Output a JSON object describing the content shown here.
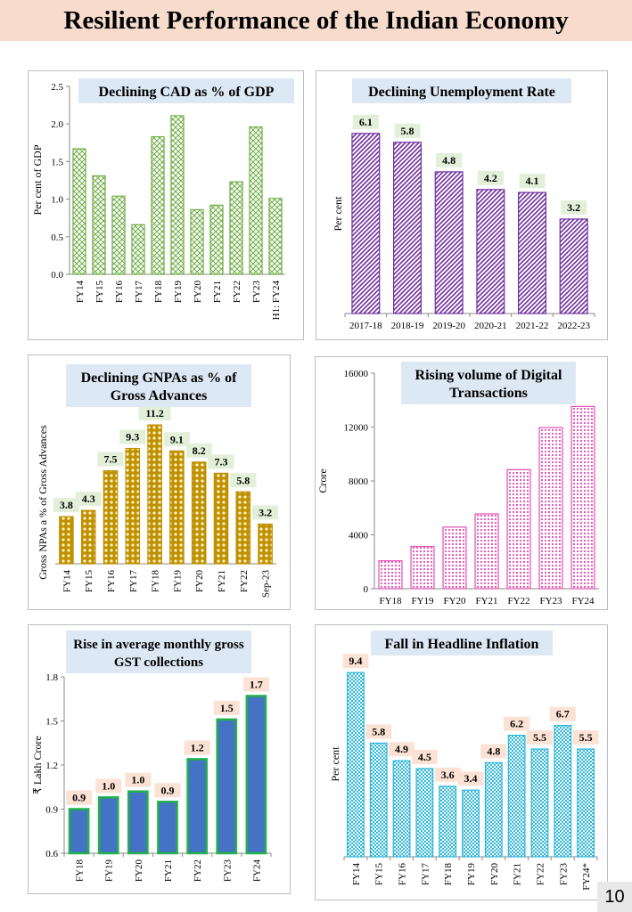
{
  "page": {
    "title": "Resilient Performance of the Indian Economy",
    "page_number": "10"
  },
  "colors": {
    "banner_bg": "#f7dccd",
    "title_box_bg": "#dde8f5",
    "green": "#70ad47",
    "purple": "#7030a0",
    "gold": "#bf9000",
    "pink": "#e24fb2",
    "blue": "#4472c4",
    "bar_green_border": "#22b14c",
    "cyan": "#2ab5d9",
    "label_green_bg": "#e2efd9",
    "label_peach_bg": "#fbe2d5"
  },
  "chart_data": [
    {
      "id": "cad",
      "type": "bar",
      "title": "Declining CAD as % of GDP",
      "ylabel": "Per cent of GDP",
      "xlabel": "",
      "categories": [
        "FY14",
        "FY15",
        "FY16",
        "FY17",
        "FY18",
        "FY19",
        "FY20",
        "FY21",
        "FY22",
        "FY23",
        "H1: FY24"
      ],
      "values": [
        1.67,
        1.31,
        1.04,
        0.66,
        1.83,
        2.11,
        0.86,
        0.92,
        1.23,
        1.96,
        1.01
      ],
      "ylim": [
        0,
        2.5
      ],
      "yticks": [
        "0.0",
        "0.5",
        "1.0",
        "1.5",
        "2.0",
        "2.5"
      ],
      "show_data_labels": false,
      "pattern": "diamond"
    },
    {
      "id": "unemp",
      "type": "bar",
      "title": "Declining Unemployment Rate",
      "ylabel": "Per cent",
      "xlabel": "",
      "categories": [
        "2017-18",
        "2018-19",
        "2019-20",
        "2020-21",
        "2021-22",
        "2022-23"
      ],
      "values": [
        6.1,
        5.8,
        4.8,
        4.2,
        4.1,
        3.2
      ],
      "data_labels": [
        "6.1",
        "5.8",
        "4.8",
        "4.2",
        "4.1",
        "3.2"
      ],
      "ylim": [
        0,
        7
      ],
      "show_data_labels": true,
      "pattern": "hatch"
    },
    {
      "id": "gnpa",
      "type": "bar",
      "title": "Declining GNPAs as % of Gross Advances",
      "title_lines": [
        "Declining GNPAs as % of",
        "Gross Advances"
      ],
      "ylabel": "Gross NPAs a % of Gross Advances",
      "xlabel": "",
      "categories": [
        "FY14",
        "FY15",
        "FY16",
        "FY17",
        "FY18",
        "FY19",
        "FY20",
        "FY21",
        "FY22",
        "Sep-23"
      ],
      "values": [
        3.8,
        4.3,
        7.5,
        9.3,
        11.2,
        9.1,
        8.2,
        7.3,
        5.8,
        3.2
      ],
      "data_labels": [
        "3.8",
        "4.3",
        "7.5",
        "9.3",
        "11.2",
        "9.1",
        "8.2",
        "7.3",
        "5.8",
        "3.2"
      ],
      "ylim": [
        0,
        12.5
      ],
      "show_data_labels": true,
      "pattern": "dots"
    },
    {
      "id": "digital",
      "type": "bar",
      "title": "Rising volume of Digital Transactions",
      "title_lines": [
        "Rising volume of Digital",
        "Transactions"
      ],
      "ylabel": "Crore",
      "xlabel": "",
      "categories": [
        "FY18",
        "FY19",
        "FY20",
        "FY21",
        "FY22",
        "FY23",
        "FY24"
      ],
      "values": [
        2071,
        3134,
        4572,
        5554,
        8840,
        11961,
        13528
      ],
      "ylim": [
        0,
        16000
      ],
      "yticks": [
        "0",
        "4000",
        "8000",
        "12000",
        "16000"
      ],
      "show_data_labels": false,
      "pattern": "pinkdots"
    },
    {
      "id": "gst",
      "type": "bar",
      "title": "Rise in average monthly gross GST collections",
      "title_lines": [
        "Rise in average monthly gross",
        "GST collections"
      ],
      "ylabel": "₹ Lakh Crore",
      "xlabel": "",
      "categories": [
        "FY18",
        "FY19",
        "FY20",
        "FY21",
        "FY22",
        "FY23",
        "FY24"
      ],
      "values": [
        0.9,
        0.98,
        1.02,
        0.95,
        1.24,
        1.51,
        1.67
      ],
      "data_labels": [
        "0.9",
        "1.0",
        "1.0",
        "0.9",
        "1.2",
        "1.5",
        "1.7"
      ],
      "ylim": [
        0.6,
        1.8
      ],
      "yticks": [
        "0.6",
        "0.9",
        "1.2",
        "1.5",
        "1.8"
      ],
      "show_data_labels": true,
      "pattern": "solid"
    },
    {
      "id": "infl",
      "type": "bar",
      "title": "Fall in Headline Inflation",
      "ylabel": "Per cent",
      "xlabel": "",
      "categories": [
        "FY14",
        "FY15",
        "FY16",
        "FY17",
        "FY18",
        "FY19",
        "FY20",
        "FY21",
        "FY22",
        "FY23",
        "FY24*"
      ],
      "values": [
        9.4,
        5.8,
        4.9,
        4.5,
        3.6,
        3.4,
        4.8,
        6.2,
        5.5,
        6.7,
        5.5
      ],
      "data_labels": [
        "9.4",
        "5.8",
        "4.9",
        "4.5",
        "3.6",
        "3.4",
        "4.8",
        "6.2",
        "5.5",
        "6.7",
        "5.5"
      ],
      "ylim": [
        0,
        10
      ],
      "show_data_labels": true,
      "pattern": "checker"
    }
  ]
}
